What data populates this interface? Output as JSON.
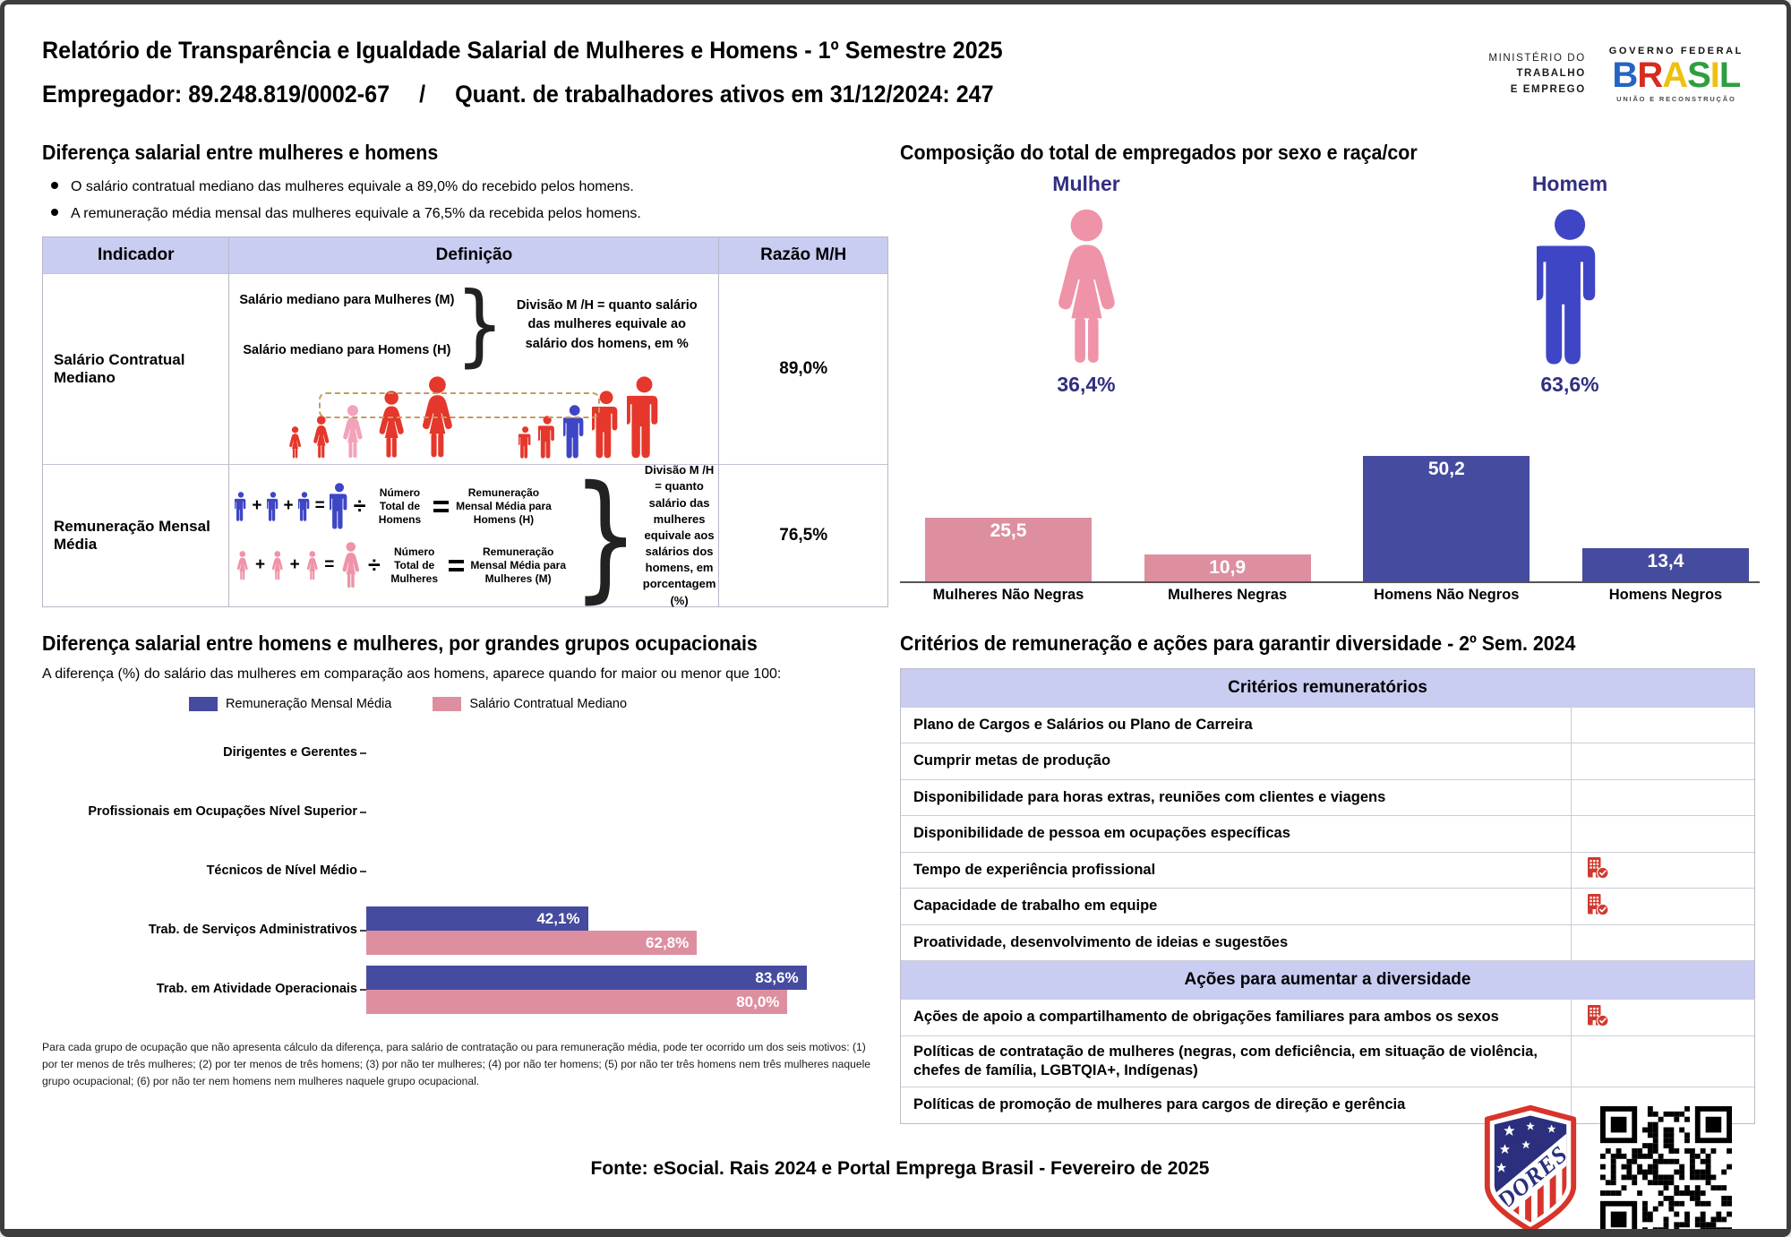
{
  "header": {
    "title": "Relatório de Transparência e Igualdade Salarial de Mulheres e Homens - 1º Semestre 2025",
    "employer": "Empregador: 89.248.819/0002-67",
    "separator": "/",
    "workers": "Quant. de trabalhadores ativos em 31/12/2024: 247"
  },
  "logos": {
    "ministry_line1": "MINISTÉRIO DO",
    "ministry_line2": "TRABALHO",
    "ministry_line3": "E EMPREGO",
    "gov_top": "GOVERNO FEDERAL",
    "gov_name_letters": [
      "B",
      "R",
      "A",
      "S",
      "I",
      "L"
    ],
    "gov_bottom": "UNIÃO E RECONSTRUÇÃO",
    "badge_text": "DORES"
  },
  "salary_gap": {
    "title": "Diferença salarial entre mulheres e homens",
    "bullets": [
      "O salário contratual mediano das mulheres equivale a 89,0% do recebido pelos homens.",
      "A remuneração média mensal das mulheres equivale a 76,5% da recebida pelos homens."
    ],
    "table": {
      "col_indicator": "Indicador",
      "col_definition": "Definição",
      "col_ratio": "Razão M/H",
      "row1": {
        "indicator": "Salário Contratual Mediano",
        "line_women": "Salário mediano para Mulheres (M)",
        "line_men": "Salário mediano para Homens (H)",
        "note": "Divisão M /H = quanto salário das mulheres equivale ao salário dos homens, em %",
        "ratio": "89,0%"
      },
      "row2": {
        "indicator": "Remuneração Mensal Média",
        "men_divide": "Número Total de Homens",
        "men_result": "Remuneração Mensal Média para Homens (H)",
        "women_divide": "Número Total de Mulheres",
        "women_result": "Remuneração Mensal Média para Mulheres (M)",
        "note": "Divisão M /H = quanto salário das mulheres equivale aos salários dos homens, em porcentagem (%)",
        "ratio": "76,5%"
      }
    }
  },
  "composition": {
    "title": "Composição do total de empregados por sexo e raça/cor",
    "female_label": "Mulher",
    "female_pct": "36,4%",
    "male_label": "Homem",
    "male_pct": "63,6%"
  },
  "occupational": {
    "title": "Diferença salarial entre homens e mulheres, por grandes grupos ocupacionais",
    "subtitle": "A diferença (%) do salário das mulheres em comparação aos homens, aparece quando for maior ou menor que 100:",
    "legend": [
      "Remuneração Mensal Média",
      "Salário Contratual Mediano"
    ],
    "footnote": "Para cada grupo de ocupação que não apresenta cálculo da diferença, para salário de contratação ou para remuneração média, pode ter ocorrido um dos seis motivos: (1) por ter menos de três mulheres; (2) por ter menos de três homens; (3) por não ter mulheres; (4) por não ter homens; (5) por não ter três homens nem três mulheres naquele grupo ocupacional; (6) por não ter nem homens nem mulheres naquele grupo ocupacional."
  },
  "criteria": {
    "title": "Critérios de remuneração e ações para garantir diversidade - 2º Sem. 2024",
    "group1_header": "Critérios remuneratórios",
    "group1_rows": [
      "Plano de Cargos e Salários ou Plano de Carreira",
      "Cumprir metas de produção",
      "Disponibilidade para horas extras, reuniões com clientes e viagens",
      "Disponibilidade de pessoa em ocupações específicas",
      "Tempo de experiência profissional",
      "Capacidade de trabalho em equipe",
      "Proatividade, desenvolvimento de ideias e sugestões"
    ],
    "group1_flags": [
      false,
      false,
      false,
      false,
      true,
      true,
      false
    ],
    "group2_header": "Ações para aumentar a diversidade",
    "group2_rows": [
      "Ações de apoio a compartilhamento de obrigações familiares para ambos os sexos",
      "Políticas de contratação de mulheres (negras, com deficiência, em situação de violência, chefes de família, LGBTQIA+, Indígenas)",
      "Políticas de promoção de mulheres para cargos de direção e gerência"
    ],
    "group2_flags": [
      true,
      false,
      false
    ]
  },
  "footer": {
    "source": "Fonte: eSocial. Rais 2024 e Portal Emprega Brasil - Fevereiro de 2025"
  },
  "chart_data": [
    {
      "type": "bar",
      "title": "Composição do total de empregados por sexo e raça/cor",
      "categories": [
        "Mulheres Não Negras",
        "Mulheres Negras",
        "Homens Não Negros",
        "Homens Negros"
      ],
      "values": [
        25.5,
        10.9,
        50.2,
        13.4
      ],
      "value_labels": [
        "25,5",
        "10,9",
        "50,2",
        "13,4"
      ],
      "bar_colors": [
        "bar_pink",
        "bar_pink",
        "bar_blue",
        "bar_blue"
      ],
      "female_pct": 36.4,
      "male_pct": 63.6,
      "ylim": [
        0,
        55
      ],
      "grid": false,
      "legend_position": "none"
    },
    {
      "type": "bar-horizontal",
      "title": "Diferença salarial entre homens e mulheres, por grandes grupos ocupacionais",
      "categories": [
        "Dirigentes e Gerentes",
        "Profissionais em Ocupações Nível Superior",
        "Técnicos de Nível Médio",
        "Trab. de Serviços Administrativos",
        "Trab. em Atividade Operacionais"
      ],
      "series": [
        {
          "name": "Remuneração Mensal Média",
          "color": "bar_blue",
          "values": [
            null,
            null,
            null,
            42.1,
            83.6
          ],
          "value_labels": [
            null,
            null,
            null,
            "42,1%",
            "83,6%"
          ]
        },
        {
          "name": "Salário Contratual Mediano",
          "color": "bar_pink",
          "values": [
            null,
            null,
            null,
            62.8,
            80.0
          ],
          "value_labels": [
            null,
            null,
            null,
            "62,8%",
            "80,0%"
          ]
        }
      ],
      "xlim": [
        0,
        100
      ],
      "grid": false,
      "legend_position": "top"
    }
  ],
  "colors": {
    "bar_blue": "#454b9e",
    "bar_pink": "#dd8fa0",
    "fig_blue": "#3f46c5",
    "fig_pink": "#ef93a8",
    "fig_red": "#e5372b",
    "fig_pink_light": "#f2a3ba",
    "navy": "#312e81",
    "lavender": "#c9cdf2",
    "icon_red": "#d03a2e",
    "dash_box": "#c79a62"
  }
}
